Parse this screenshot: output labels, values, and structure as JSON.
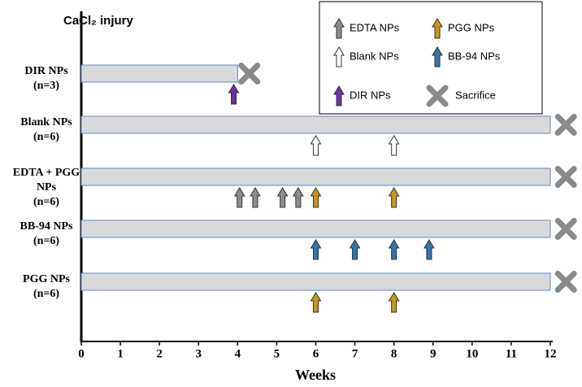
{
  "chart_data": {
    "type": "timeline",
    "title": "CaCl₂ injury",
    "xlabel": "Weeks",
    "xlim": [
      0,
      12
    ],
    "xticks": [
      0,
      1,
      2,
      3,
      4,
      5,
      6,
      7,
      8,
      9,
      10,
      11,
      12
    ],
    "rows": [
      {
        "label": [
          "DIR NPs",
          "(n=3)"
        ],
        "bar": [
          0,
          4
        ]
      },
      {
        "label": [
          "Blank NPs",
          "(n=6)"
        ],
        "bar": [
          0,
          12
        ]
      },
      {
        "label": [
          "EDTA + PGG",
          "NPs",
          "(n=6)"
        ],
        "bar": [
          0,
          12
        ]
      },
      {
        "label": [
          "BB-94 NPs",
          "(n=6)"
        ],
        "bar": [
          0,
          12
        ]
      },
      {
        "label": [
          "PGG NPs",
          "(n=6)"
        ],
        "bar": [
          0,
          12
        ]
      }
    ],
    "series": [
      {
        "name": "EDTA NPs",
        "marker": "arrow",
        "color": "#8c8c8c",
        "row": [
          2,
          2,
          2,
          2
        ],
        "x": [
          4.05,
          4.45,
          5.15,
          5.55
        ]
      },
      {
        "name": "PGG NPs",
        "marker": "arrow",
        "color": "#c8961e",
        "row": [
          2,
          2,
          4,
          4
        ],
        "x": [
          6,
          8,
          6,
          8
        ]
      },
      {
        "name": "Blank NPs",
        "marker": "arrow",
        "color": "#ffffff",
        "row": [
          1,
          1
        ],
        "x": [
          6,
          8
        ]
      },
      {
        "name": "BB-94 NPs",
        "marker": "arrow",
        "color": "#2e75b6",
        "row": [
          3,
          3,
          3,
          3
        ],
        "x": [
          6,
          7,
          8,
          8.9
        ]
      },
      {
        "name": "DIR NPs",
        "marker": "arrow",
        "color": "#7030a0",
        "row": [
          0
        ],
        "x": [
          3.9
        ]
      },
      {
        "name": "Sacrifice",
        "marker": "cross",
        "color": "#8a8a8a",
        "row": [
          0,
          1,
          2,
          3,
          4
        ],
        "x": [
          4.3,
          12.4,
          12.4,
          12.4,
          12.4
        ]
      }
    ]
  }
}
